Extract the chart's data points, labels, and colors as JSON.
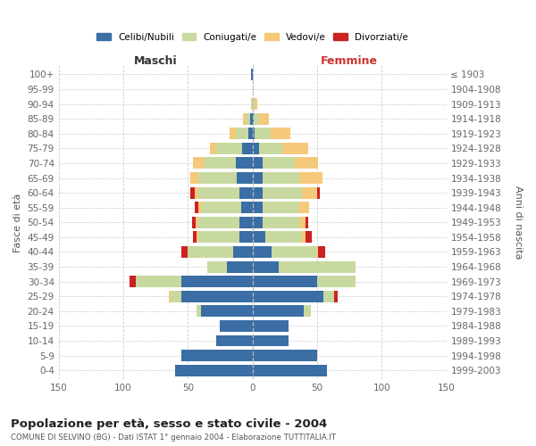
{
  "age_groups": [
    "0-4",
    "5-9",
    "10-14",
    "15-19",
    "20-24",
    "25-29",
    "30-34",
    "35-39",
    "40-44",
    "45-49",
    "50-54",
    "55-59",
    "60-64",
    "65-69",
    "70-74",
    "75-79",
    "80-84",
    "85-89",
    "90-94",
    "95-99",
    "100+"
  ],
  "birth_years": [
    "1999-2003",
    "1994-1998",
    "1989-1993",
    "1984-1988",
    "1979-1983",
    "1974-1978",
    "1969-1973",
    "1964-1968",
    "1959-1963",
    "1954-1958",
    "1949-1953",
    "1944-1948",
    "1939-1943",
    "1934-1938",
    "1929-1933",
    "1924-1928",
    "1919-1923",
    "1914-1918",
    "1909-1913",
    "1904-1908",
    "≤ 1903"
  ],
  "male_celibi": [
    60,
    55,
    28,
    25,
    40,
    55,
    55,
    20,
    15,
    10,
    10,
    9,
    10,
    12,
    13,
    8,
    3,
    2,
    0,
    0,
    1
  ],
  "male_coniugati": [
    0,
    0,
    0,
    0,
    3,
    8,
    35,
    15,
    35,
    32,
    32,
    30,
    32,
    30,
    25,
    20,
    10,
    3,
    1,
    0,
    0
  ],
  "male_vedovi": [
    0,
    0,
    0,
    0,
    0,
    2,
    0,
    0,
    0,
    1,
    2,
    3,
    3,
    6,
    8,
    5,
    5,
    2,
    0,
    0,
    0
  ],
  "male_divorziati": [
    0,
    0,
    0,
    0,
    0,
    0,
    5,
    0,
    5,
    3,
    3,
    3,
    3,
    0,
    0,
    0,
    0,
    0,
    0,
    0,
    0
  ],
  "female_nubili": [
    58,
    50,
    28,
    28,
    40,
    55,
    50,
    20,
    15,
    10,
    8,
    8,
    8,
    8,
    8,
    5,
    2,
    1,
    0,
    0,
    0
  ],
  "female_coniugate": [
    0,
    0,
    0,
    0,
    5,
    8,
    30,
    60,
    35,
    28,
    28,
    28,
    30,
    28,
    25,
    18,
    12,
    4,
    2,
    0,
    0
  ],
  "female_vedove": [
    0,
    0,
    0,
    0,
    0,
    0,
    0,
    0,
    1,
    3,
    5,
    8,
    12,
    18,
    18,
    20,
    15,
    8,
    2,
    0,
    0
  ],
  "female_divorziate": [
    0,
    0,
    0,
    0,
    0,
    3,
    0,
    0,
    5,
    5,
    2,
    0,
    2,
    0,
    0,
    0,
    0,
    0,
    0,
    0,
    0
  ],
  "color_celibi": "#3a6ea5",
  "color_coniugati": "#c8d9a0",
  "color_vedovi": "#f5c97a",
  "color_divorziati": "#cc2222",
  "xlim": 150,
  "title": "Popolazione per età, sesso e stato civile - 2004",
  "subtitle": "COMUNE DI SELVINO (BG) - Dati ISTAT 1° gennaio 2004 - Elaborazione TUTTITALIA.IT",
  "ylabel_left": "Fasce di età",
  "ylabel_right": "Anni di nascita",
  "label_male": "Maschi",
  "label_female": "Femmine",
  "legend_labels": [
    "Celibi/Nubili",
    "Coniugati/e",
    "Vedovi/e",
    "Divorziati/e"
  ],
  "bg_color": "#ffffff",
  "grid_color": "#cccccc"
}
